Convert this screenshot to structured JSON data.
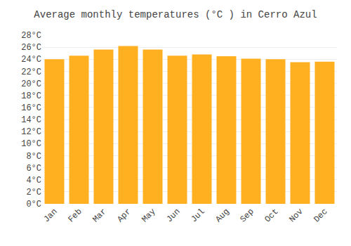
{
  "chart_data": {
    "type": "bar",
    "title": "Average monthly temperatures (°C ) in Cerro Azul",
    "categories": [
      "Jan",
      "Feb",
      "Mar",
      "Apr",
      "May",
      "Jun",
      "Jul",
      "Aug",
      "Sep",
      "Oct",
      "Nov",
      "Dec"
    ],
    "values": [
      24.0,
      24.6,
      25.6,
      26.2,
      25.6,
      24.6,
      24.8,
      24.5,
      24.1,
      24.0,
      23.5,
      23.6
    ],
    "color": "#FFB020",
    "ylim": [
      0,
      28
    ],
    "yticks": [
      {
        "value": 0,
        "label": "0°C"
      },
      {
        "value": 2,
        "label": "2°C"
      },
      {
        "value": 4,
        "label": "4°C"
      },
      {
        "value": 6,
        "label": "6°C"
      },
      {
        "value": 8,
        "label": "8°C"
      },
      {
        "value": 10,
        "label": "10°C"
      },
      {
        "value": 12,
        "label": "12°C"
      },
      {
        "value": 14,
        "label": "14°C"
      },
      {
        "value": 16,
        "label": "16°C"
      },
      {
        "value": 18,
        "label": "18°C"
      },
      {
        "value": 20,
        "label": "20°C"
      },
      {
        "value": 22,
        "label": "22°C"
      },
      {
        "value": 24,
        "label": "24°C"
      },
      {
        "value": 26,
        "label": "26°C"
      },
      {
        "value": 28,
        "label": "28°C"
      }
    ],
    "grid": true
  }
}
